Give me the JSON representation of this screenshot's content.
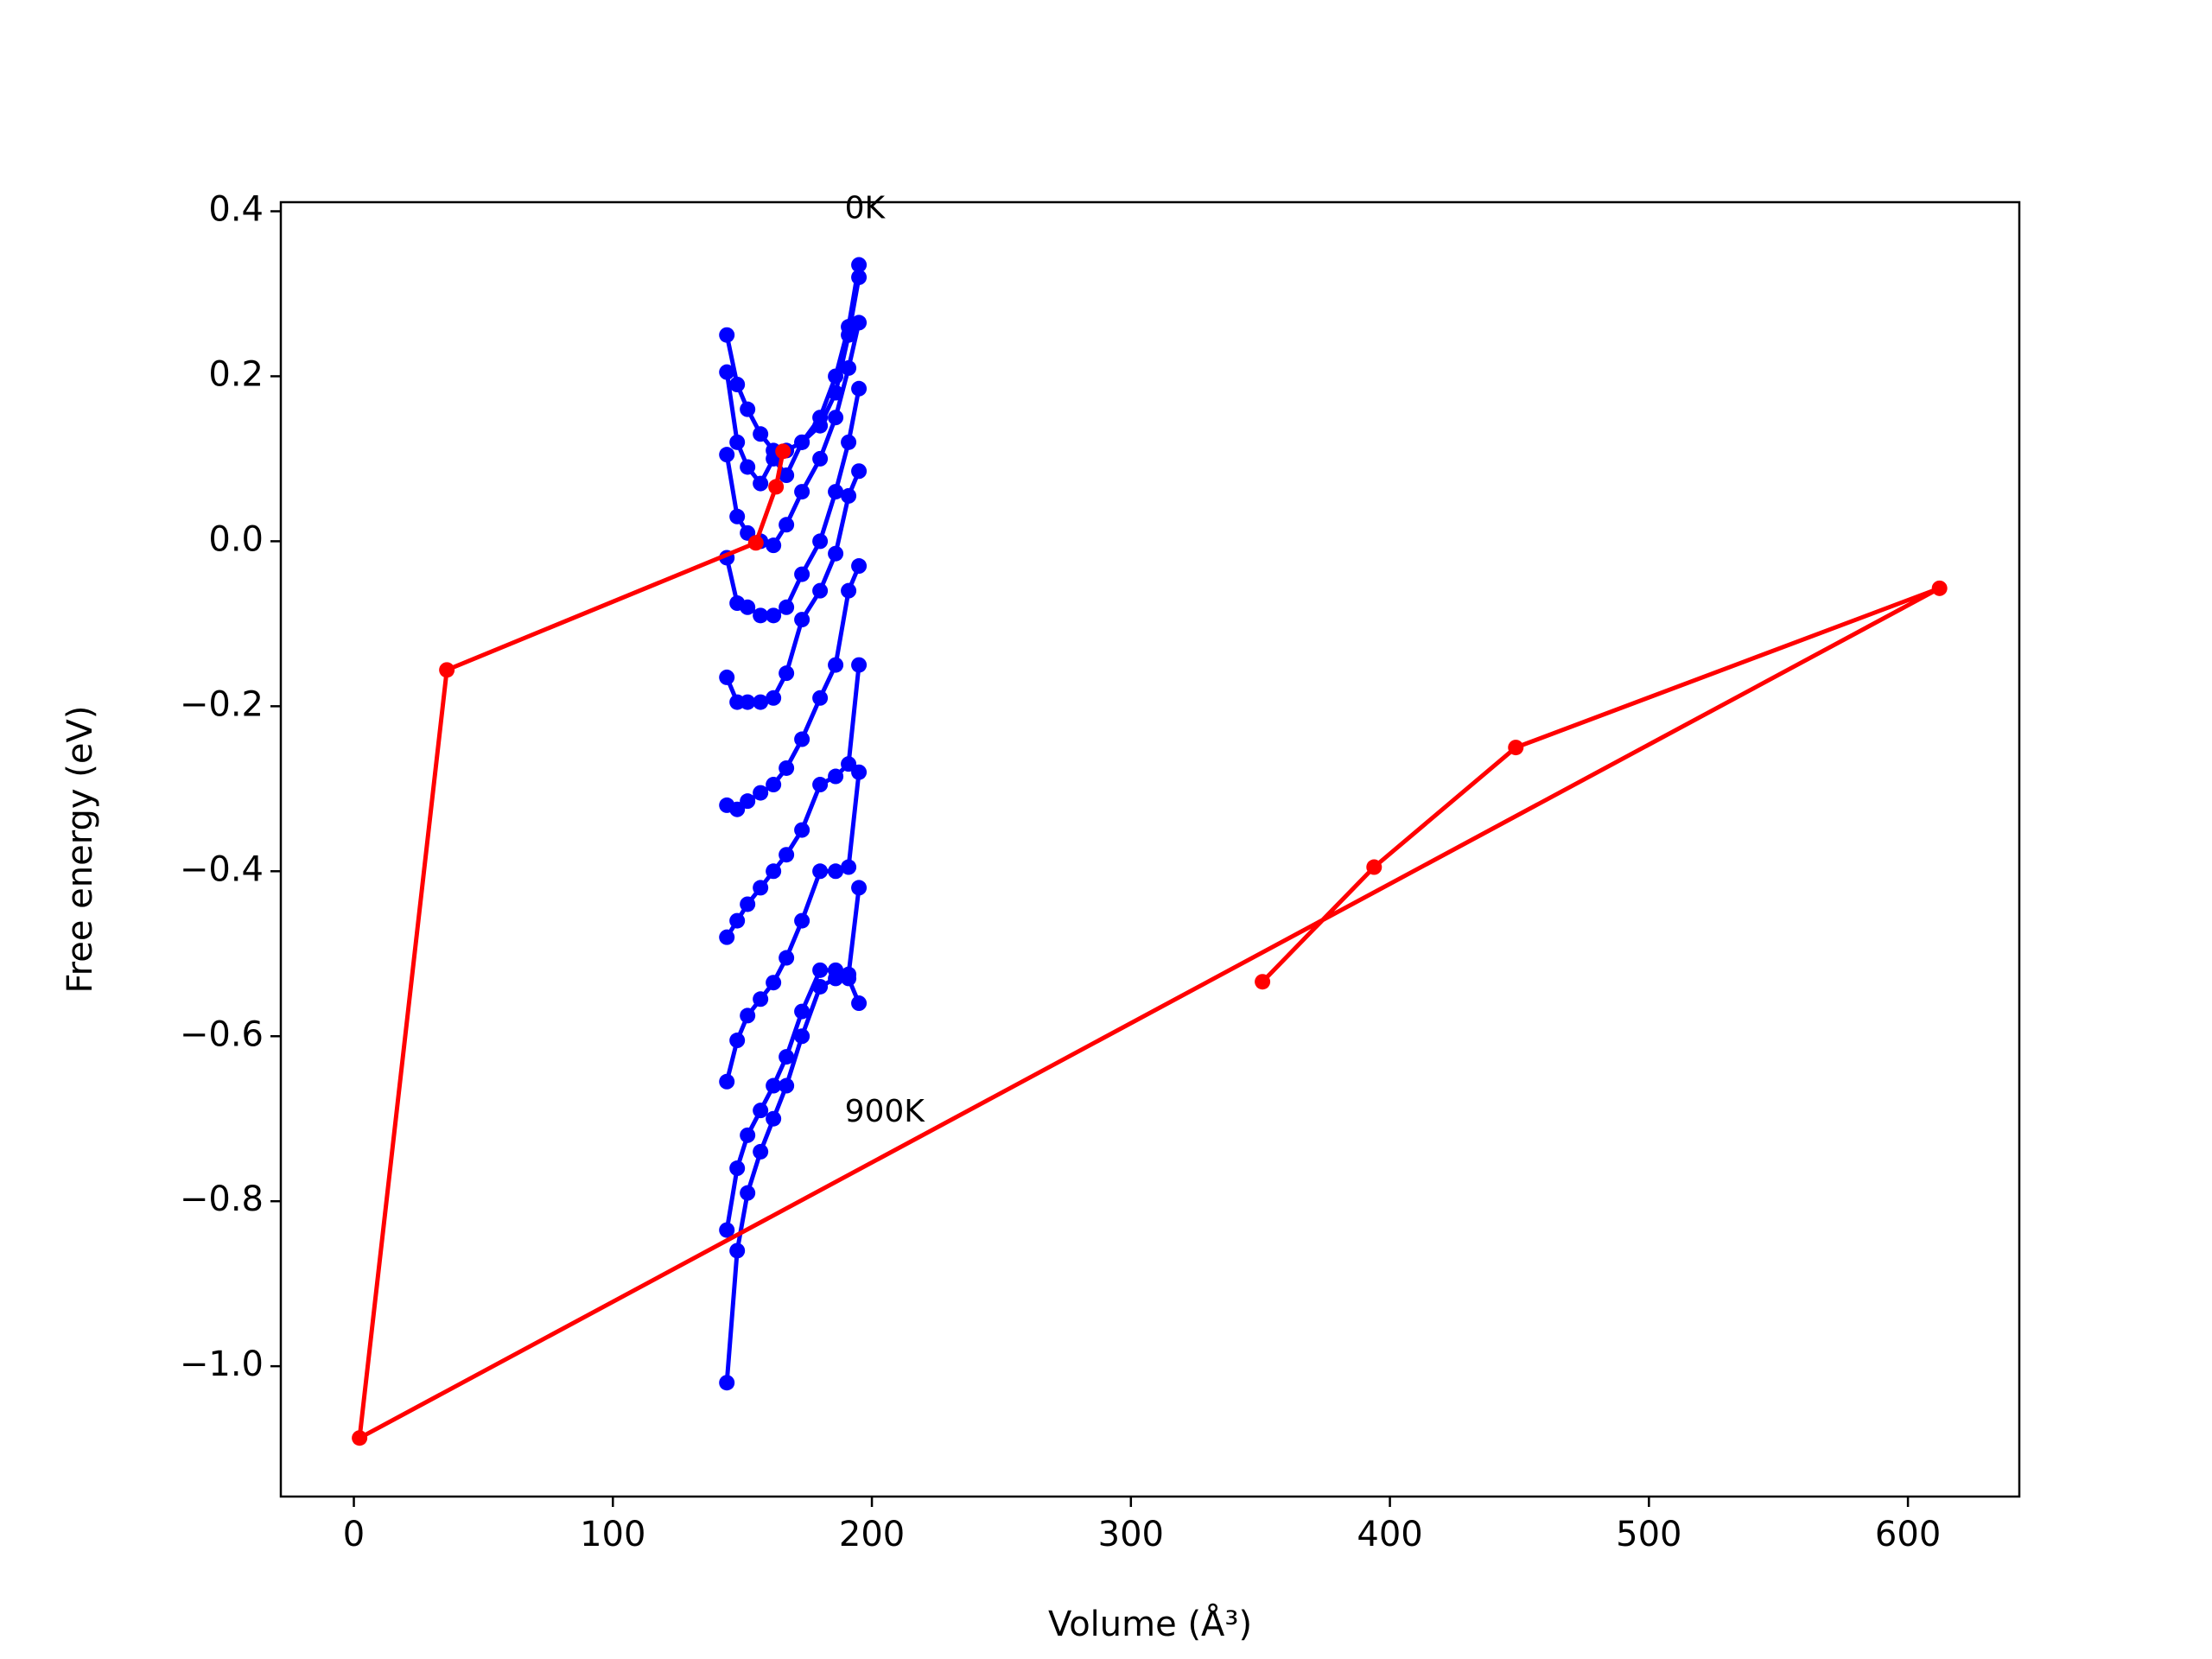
{
  "chart_data": {
    "type": "line",
    "x_label": "Volume (Å³)",
    "y_label": "Free energy (eV)",
    "xlim": [
      -28.2,
      643
    ],
    "ylim": [
      -1.158,
      0.411
    ],
    "xticks": [
      0,
      100,
      200,
      300,
      400,
      500,
      600
    ],
    "yticks": [
      {
        "value": -1.0,
        "label": "−1.0"
      },
      {
        "value": -0.8,
        "label": "−0.8"
      },
      {
        "value": -0.6,
        "label": "−0.6"
      },
      {
        "value": -0.4,
        "label": "−0.4"
      },
      {
        "value": -0.2,
        "label": "−0.2"
      },
      {
        "value": 0.0,
        "label": "0.0"
      },
      0.2,
      0.4
    ],
    "annotations": [
      {
        "text": "0K",
        "x": 189.5,
        "y": 0.402
      },
      {
        "text": "900K",
        "x": 189.5,
        "y": -0.693
      }
    ],
    "series": [
      {
        "color": "#0000ff",
        "x": [
          144,
          148,
          152,
          157,
          162,
          167,
          173,
          180,
          186,
          191,
          195
        ],
        "values": [
          0.25,
          0.19,
          0.16,
          0.13,
          0.11,
          0.11,
          0.12,
          0.15,
          0.2,
          0.26,
          0.335
        ]
      },
      {
        "color": "#0000ff",
        "x": [
          144,
          148,
          152,
          157,
          162,
          167,
          173,
          180,
          186,
          191,
          195
        ],
        "values": [
          0.205,
          0.12,
          0.09,
          0.07,
          0.1,
          0.08,
          0.12,
          0.14,
          0.18,
          0.25,
          0.32
        ]
      },
      {
        "color": "#0000ff",
        "x": [
          144,
          148,
          152,
          157,
          162,
          167,
          173,
          180,
          186,
          191,
          195
        ],
        "values": [
          0.105,
          0.03,
          0.01,
          0.0,
          -0.005,
          0.02,
          0.06,
          0.1,
          0.15,
          0.21,
          0.265
        ]
      },
      {
        "color": "#0000ff",
        "x": [
          144,
          148,
          152,
          157,
          162,
          167,
          173,
          180,
          186,
          191,
          195
        ],
        "values": [
          -0.02,
          -0.075,
          -0.08,
          -0.09,
          -0.09,
          -0.08,
          -0.04,
          0.0,
          0.06,
          0.12,
          0.185
        ]
      },
      {
        "color": "#0000ff",
        "x": [
          144,
          148,
          152,
          157,
          162,
          167,
          173,
          180,
          186,
          191,
          195
        ],
        "values": [
          -0.165,
          -0.195,
          -0.195,
          -0.195,
          -0.19,
          -0.16,
          -0.095,
          -0.06,
          -0.015,
          0.055,
          0.085
        ]
      },
      {
        "color": "#0000ff",
        "x": [
          144,
          148,
          152,
          157,
          162,
          167,
          173,
          180,
          186,
          191,
          195
        ],
        "values": [
          -0.32,
          -0.325,
          -0.315,
          -0.305,
          -0.295,
          -0.275,
          -0.24,
          -0.19,
          -0.15,
          -0.06,
          -0.03
        ]
      },
      {
        "color": "#0000ff",
        "x": [
          144,
          148,
          152,
          157,
          162,
          167,
          173,
          180,
          186,
          191,
          195
        ],
        "values": [
          -0.48,
          -0.46,
          -0.44,
          -0.42,
          -0.4,
          -0.38,
          -0.35,
          -0.295,
          -0.285,
          -0.27,
          -0.15
        ]
      },
      {
        "color": "#0000ff",
        "x": [
          144,
          148,
          152,
          157,
          162,
          167,
          173,
          180,
          186,
          191,
          195
        ],
        "values": [
          -0.655,
          -0.605,
          -0.575,
          -0.555,
          -0.535,
          -0.505,
          -0.46,
          -0.4,
          -0.4,
          -0.395,
          -0.28
        ]
      },
      {
        "color": "#0000ff",
        "x": [
          144,
          148,
          152,
          157,
          162,
          167,
          173,
          180,
          186,
          191,
          195
        ],
        "values": [
          -0.835,
          -0.76,
          -0.72,
          -0.69,
          -0.66,
          -0.625,
          -0.57,
          -0.52,
          -0.52,
          -0.525,
          -0.42
        ]
      },
      {
        "color": "#0000ff",
        "x": [
          144,
          148,
          152,
          157,
          162,
          167,
          173,
          180,
          186,
          191,
          195
        ],
        "values": [
          -1.02,
          -0.86,
          -0.79,
          -0.74,
          -0.7,
          -0.66,
          -0.6,
          -0.54,
          -0.53,
          -0.53,
          -0.56
        ]
      },
      {
        "color": "#ff0000",
        "x": [
          165.7,
          163.0,
          155.2,
          35.9,
          2.2,
          612.2,
          448.6,
          393.9,
          350.8
        ],
        "values": [
          0.109,
          0.066,
          -0.002,
          -0.156,
          -1.087,
          -0.057,
          -0.25,
          -0.395,
          -0.534
        ]
      }
    ]
  }
}
